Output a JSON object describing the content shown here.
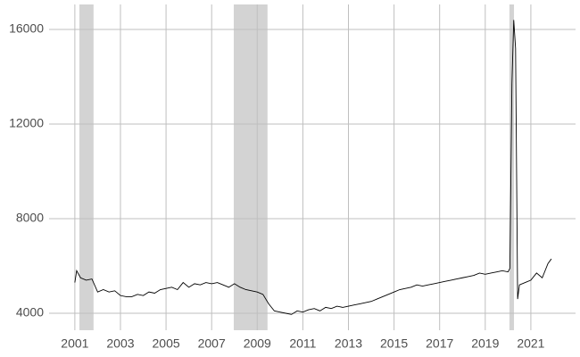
{
  "chart_data": {
    "type": "line",
    "x": [
      2001.0,
      2001.08,
      2001.25,
      2001.5,
      2001.75,
      2002.0,
      2002.25,
      2002.5,
      2002.75,
      2003.0,
      2003.25,
      2003.5,
      2003.75,
      2004.0,
      2004.25,
      2004.5,
      2004.75,
      2005.0,
      2005.25,
      2005.5,
      2005.75,
      2006.0,
      2006.25,
      2006.5,
      2006.75,
      2007.0,
      2007.25,
      2007.5,
      2007.75,
      2008.0,
      2008.25,
      2008.5,
      2008.75,
      2009.0,
      2009.25,
      2009.5,
      2009.75,
      2010.0,
      2010.25,
      2010.5,
      2010.75,
      2011.0,
      2011.25,
      2011.5,
      2011.75,
      2012.0,
      2012.25,
      2012.5,
      2012.75,
      2013.0,
      2013.25,
      2013.5,
      2013.75,
      2014.0,
      2014.25,
      2014.5,
      2014.75,
      2015.0,
      2015.25,
      2015.5,
      2015.75,
      2016.0,
      2016.25,
      2016.5,
      2016.75,
      2017.0,
      2017.25,
      2017.5,
      2017.75,
      2018.0,
      2018.25,
      2018.5,
      2018.75,
      2019.0,
      2019.25,
      2019.5,
      2019.75,
      2020.0,
      2020.08,
      2020.17,
      2020.25,
      2020.33,
      2020.42,
      2020.5,
      2020.75,
      2021.0,
      2021.25,
      2021.5,
      2021.75,
      2021.9
    ],
    "series": [
      {
        "color": "#000000",
        "values": [
          5300,
          5800,
          5500,
          5400,
          5450,
          4900,
          5000,
          4900,
          4950,
          4750,
          4700,
          4700,
          4800,
          4750,
          4900,
          4850,
          5000,
          5050,
          5100,
          5000,
          5300,
          5100,
          5250,
          5200,
          5300,
          5250,
          5300,
          5200,
          5100,
          5250,
          5100,
          5000,
          4950,
          4900,
          4800,
          4400,
          4100,
          4050,
          4000,
          3950,
          4100,
          4050,
          4150,
          4200,
          4100,
          4250,
          4200,
          4300,
          4250,
          4300,
          4350,
          4400,
          4450,
          4500,
          4600,
          4700,
          4800,
          4900,
          5000,
          5050,
          5100,
          5200,
          5150,
          5200,
          5250,
          5300,
          5350,
          5400,
          5450,
          5500,
          5550,
          5600,
          5700,
          5650,
          5700,
          5750,
          5800,
          5750,
          5900,
          13700,
          16400,
          15200,
          4600,
          5200,
          5300,
          5400,
          5700,
          5500,
          6100,
          6300
        ]
      }
    ],
    "shaded_regions": [
      [
        2001.2,
        2001.82
      ],
      [
        2007.97,
        2009.45
      ],
      [
        2020.06,
        2020.26
      ]
    ],
    "shade_color": "#d3d3d3",
    "xlim": [
      1999.87,
      2022.96
    ],
    "xticks": [
      2001,
      2003,
      2005,
      2007,
      2009,
      2011,
      2013,
      2015,
      2017,
      2019,
      2021
    ],
    "ylim": [
      3283,
      17057
    ],
    "yticks": [
      4000,
      8000,
      12000,
      16000
    ],
    "grid": true
  }
}
